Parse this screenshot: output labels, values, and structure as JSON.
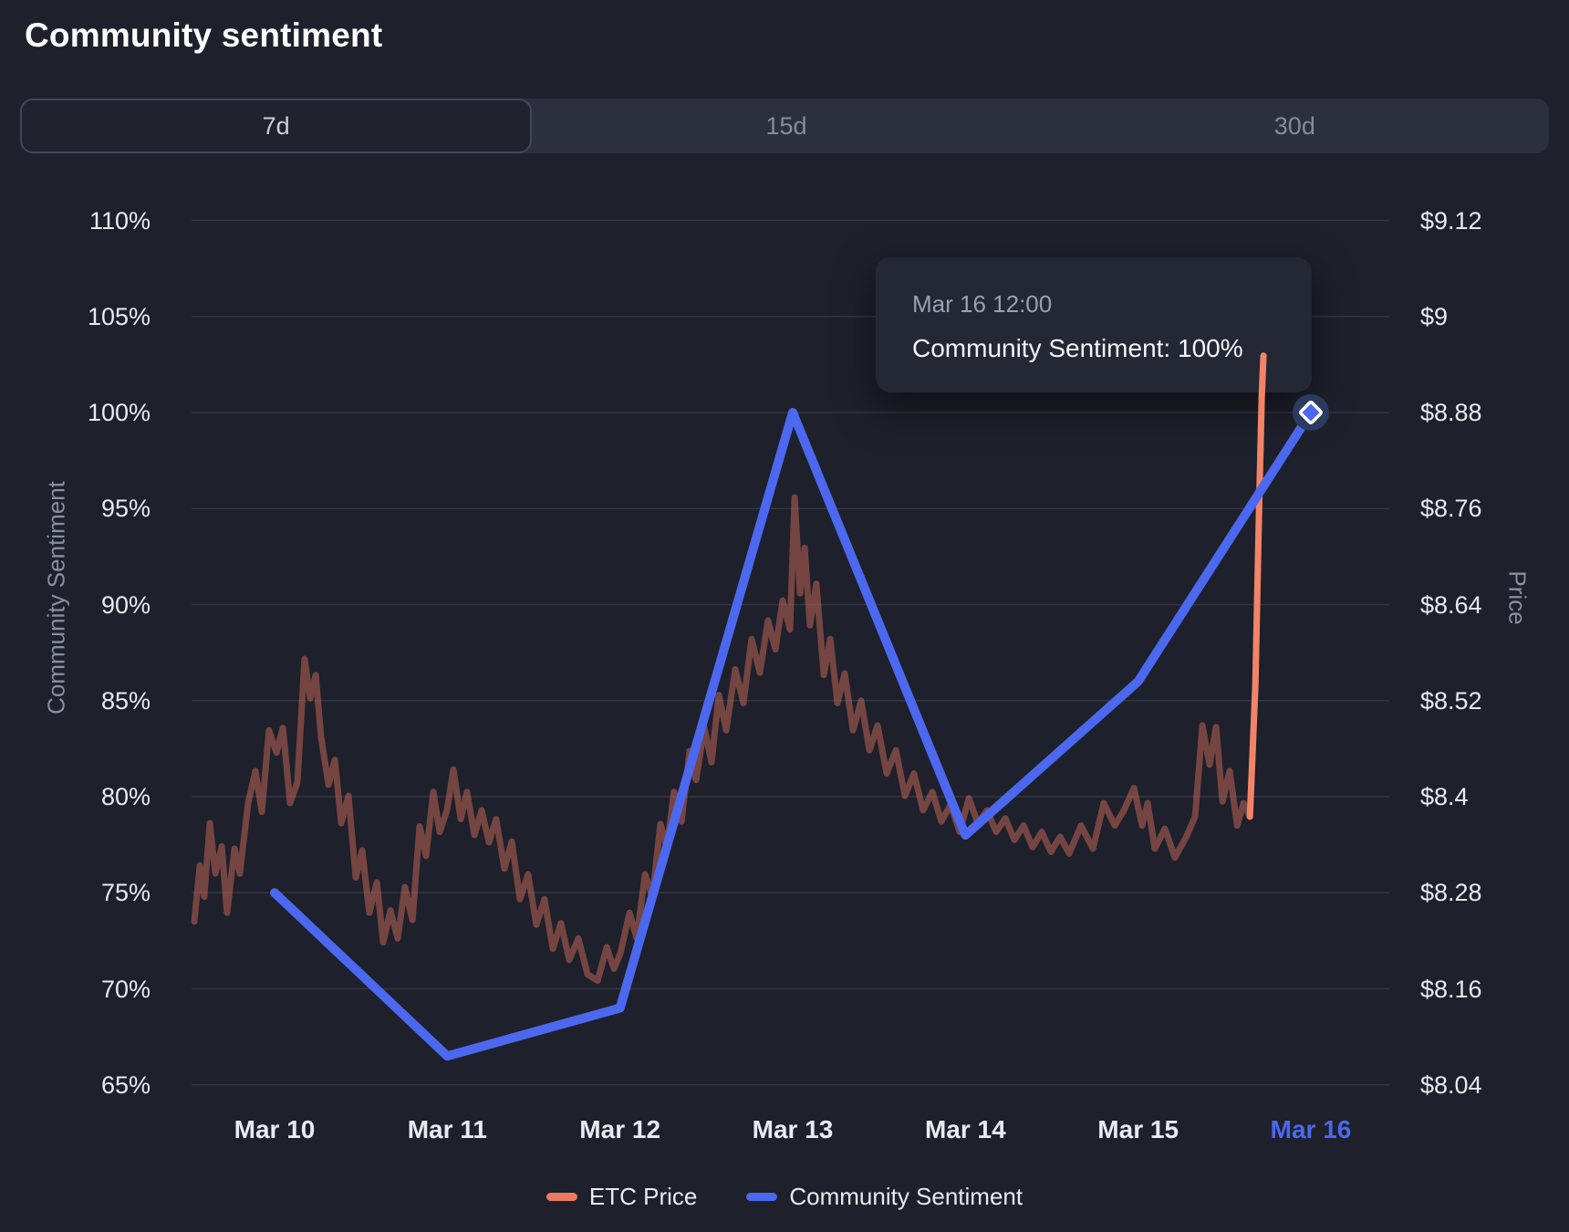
{
  "title": "Community sentiment",
  "tabs": [
    {
      "label": "7d",
      "selected": true
    },
    {
      "label": "15d",
      "selected": false
    },
    {
      "label": "30d",
      "selected": false
    }
  ],
  "tooltip": {
    "date": "Mar 16 12:00",
    "main": "Community Sentiment: 100%"
  },
  "legend": [
    {
      "label": "ETC Price",
      "color": "#ee7961"
    },
    {
      "label": "Community Sentiment",
      "color": "#4b68ef"
    }
  ],
  "colors": {
    "background": "#1e202b",
    "gridline": "rgba(160,168,190,0.16)",
    "sentiment_line": "#4b68ef",
    "price_line": "#ee7961",
    "price_line_muted": "rgba(238,121,97,0.42)",
    "price_line_bright": "#f18468",
    "marker_fill": "#4b68ef",
    "marker_halo": "#2b3a5f",
    "marker_stroke": "#ffffff",
    "active_x_label": "#4b68ef"
  },
  "chart_data": {
    "type": "line",
    "x_categories": [
      "Mar 10",
      "Mar 11",
      "Mar 12",
      "Mar 13",
      "Mar 14",
      "Mar 15",
      "Mar 16"
    ],
    "highlighted_category_index": 6,
    "left_axis": {
      "title": "Community Sentiment",
      "unit": "%",
      "min": 65,
      "max": 110,
      "step": 5,
      "ticks": [
        "110%",
        "105%",
        "100%",
        "95%",
        "90%",
        "85%",
        "80%",
        "75%",
        "70%",
        "65%"
      ]
    },
    "right_axis": {
      "title": "Price",
      "unit": "$",
      "min": 8.04,
      "max": 9.12,
      "step": 0.12,
      "ticks": [
        "$9.12",
        "$9",
        "$8.88",
        "$8.76",
        "$8.64",
        "$8.52",
        "$8.4",
        "$8.28",
        "$8.16",
        "$8.04"
      ]
    },
    "grid": true,
    "legend_position": "bottom",
    "series": [
      {
        "name": "Community Sentiment",
        "axis": "left",
        "x_days": [
          0,
          1,
          2,
          3,
          4,
          5,
          6
        ],
        "values": [
          75,
          66.5,
          69,
          100,
          78,
          86,
          100
        ],
        "marker_on_last": true
      },
      {
        "name": "ETC Price",
        "axis": "right",
        "muted": true,
        "bright_from_day": 5.647,
        "points": [
          [
            -0.465,
            8.244
          ],
          [
            -0.433,
            8.314
          ],
          [
            -0.407,
            8.275
          ],
          [
            -0.375,
            8.367
          ],
          [
            -0.343,
            8.304
          ],
          [
            -0.306,
            8.338
          ],
          [
            -0.275,
            8.255
          ],
          [
            -0.232,
            8.335
          ],
          [
            -0.201,
            8.304
          ],
          [
            -0.153,
            8.392
          ],
          [
            -0.111,
            8.432
          ],
          [
            -0.074,
            8.381
          ],
          [
            -0.032,
            8.483
          ],
          [
            0.011,
            8.455
          ],
          [
            0.048,
            8.486
          ],
          [
            0.09,
            8.392
          ],
          [
            0.132,
            8.418
          ],
          [
            0.174,
            8.572
          ],
          [
            0.206,
            8.523
          ],
          [
            0.238,
            8.552
          ],
          [
            0.269,
            8.475
          ],
          [
            0.312,
            8.415
          ],
          [
            0.349,
            8.446
          ],
          [
            0.386,
            8.367
          ],
          [
            0.428,
            8.401
          ],
          [
            0.47,
            8.299
          ],
          [
            0.507,
            8.333
          ],
          [
            0.549,
            8.255
          ],
          [
            0.592,
            8.293
          ],
          [
            0.629,
            8.218
          ],
          [
            0.671,
            8.258
          ],
          [
            0.713,
            8.223
          ],
          [
            0.755,
            8.287
          ],
          [
            0.798,
            8.246
          ],
          [
            0.84,
            8.363
          ],
          [
            0.877,
            8.326
          ],
          [
            0.919,
            8.406
          ],
          [
            0.956,
            8.356
          ],
          [
            0.998,
            8.383
          ],
          [
            1.035,
            8.434
          ],
          [
            1.078,
            8.372
          ],
          [
            1.114,
            8.406
          ],
          [
            1.157,
            8.352
          ],
          [
            1.199,
            8.383
          ],
          [
            1.241,
            8.343
          ],
          [
            1.283,
            8.372
          ],
          [
            1.331,
            8.31
          ],
          [
            1.373,
            8.344
          ],
          [
            1.421,
            8.272
          ],
          [
            1.468,
            8.303
          ],
          [
            1.516,
            8.24
          ],
          [
            1.563,
            8.272
          ],
          [
            1.611,
            8.21
          ],
          [
            1.658,
            8.242
          ],
          [
            1.706,
            8.196
          ],
          [
            1.759,
            8.223
          ],
          [
            1.812,
            8.178
          ],
          [
            1.87,
            8.17
          ],
          [
            1.923,
            8.212
          ],
          [
            1.965,
            8.185
          ],
          [
            2.002,
            8.204
          ],
          [
            2.055,
            8.255
          ],
          [
            2.097,
            8.223
          ],
          [
            2.145,
            8.303
          ],
          [
            2.187,
            8.275
          ],
          [
            2.234,
            8.366
          ],
          [
            2.271,
            8.337
          ],
          [
            2.313,
            8.406
          ],
          [
            2.356,
            8.369
          ],
          [
            2.403,
            8.457
          ],
          [
            2.44,
            8.421
          ],
          [
            2.488,
            8.486
          ],
          [
            2.53,
            8.443
          ],
          [
            2.572,
            8.527
          ],
          [
            2.615,
            8.483
          ],
          [
            2.667,
            8.559
          ],
          [
            2.715,
            8.517
          ],
          [
            2.762,
            8.597
          ],
          [
            2.81,
            8.555
          ],
          [
            2.857,
            8.62
          ],
          [
            2.9,
            8.584
          ],
          [
            2.942,
            8.645
          ],
          [
            2.984,
            8.609
          ],
          [
            3.011,
            8.774
          ],
          [
            3.042,
            8.654
          ],
          [
            3.069,
            8.711
          ],
          [
            3.1,
            8.614
          ],
          [
            3.137,
            8.666
          ],
          [
            3.18,
            8.552
          ],
          [
            3.217,
            8.597
          ],
          [
            3.259,
            8.517
          ],
          [
            3.301,
            8.554
          ],
          [
            3.349,
            8.483
          ],
          [
            3.396,
            8.52
          ],
          [
            3.444,
            8.458
          ],
          [
            3.491,
            8.489
          ],
          [
            3.544,
            8.429
          ],
          [
            3.597,
            8.458
          ],
          [
            3.65,
            8.401
          ],
          [
            3.702,
            8.429
          ],
          [
            3.755,
            8.383
          ],
          [
            3.808,
            8.406
          ],
          [
            3.861,
            8.369
          ],
          [
            3.914,
            8.39
          ],
          [
            3.967,
            8.356
          ],
          [
            4.02,
            8.398
          ],
          [
            4.072,
            8.367
          ],
          [
            4.125,
            8.383
          ],
          [
            4.178,
            8.356
          ],
          [
            4.231,
            8.373
          ],
          [
            4.284,
            8.346
          ],
          [
            4.337,
            8.364
          ],
          [
            4.389,
            8.337
          ],
          [
            4.442,
            8.356
          ],
          [
            4.495,
            8.331
          ],
          [
            4.548,
            8.35
          ],
          [
            4.601,
            8.329
          ],
          [
            4.669,
            8.364
          ],
          [
            4.738,
            8.335
          ],
          [
            4.801,
            8.392
          ],
          [
            4.865,
            8.364
          ],
          [
            4.918,
            8.383
          ],
          [
            4.976,
            8.411
          ],
          [
            5.023,
            8.364
          ],
          [
            5.055,
            8.392
          ],
          [
            5.097,
            8.335
          ],
          [
            5.155,
            8.36
          ],
          [
            5.213,
            8.324
          ],
          [
            5.277,
            8.349
          ],
          [
            5.33,
            8.375
          ],
          [
            5.372,
            8.489
          ],
          [
            5.414,
            8.44
          ],
          [
            5.451,
            8.487
          ],
          [
            5.488,
            8.394
          ],
          [
            5.53,
            8.432
          ],
          [
            5.573,
            8.364
          ],
          [
            5.61,
            8.392
          ],
          [
            5.647,
            8.375
          ],
          [
            5.679,
            8.54
          ],
          [
            5.7,
            8.757
          ],
          [
            5.716,
            8.902
          ],
          [
            5.726,
            8.951
          ]
        ]
      }
    ],
    "active_point": {
      "category": "Mar 16",
      "time": "12:00",
      "series": "Community Sentiment",
      "value": 100
    }
  }
}
